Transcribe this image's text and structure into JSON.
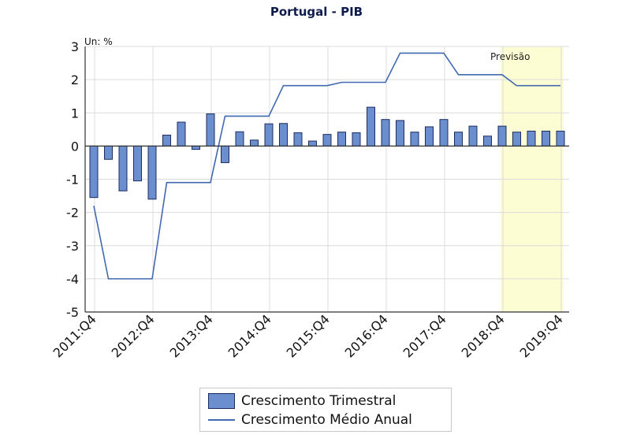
{
  "colors": {
    "bar_fill": "#6b8fce",
    "bar_stroke": "#1c2c60",
    "line": "#4169b0",
    "forecast_fill": "#fdfdd3",
    "grid": "#dcdcdc",
    "axis": "#333333"
  },
  "chart_data": {
    "type": "bar+line",
    "title": "Portugal - PIB",
    "unit_label": "Un: %",
    "forecast_label": "Previsão",
    "forecast_range": [
      "2018:Q4",
      "2019:Q4"
    ],
    "ylim": [
      -5,
      3
    ],
    "yticks": [
      3,
      2,
      1,
      0,
      -1,
      -2,
      -3,
      -4,
      -5
    ],
    "x_tick_labels": [
      "2011:Q4",
      "2012:Q4",
      "2013:Q4",
      "2014:Q4",
      "2015:Q4",
      "2016:Q4",
      "2017:Q4",
      "2018:Q4",
      "2019:Q4"
    ],
    "categories": [
      "2011:Q4",
      "2012:Q1",
      "2012:Q2",
      "2012:Q3",
      "2012:Q4",
      "2013:Q1",
      "2013:Q2",
      "2013:Q3",
      "2013:Q4",
      "2014:Q1",
      "2014:Q2",
      "2014:Q3",
      "2014:Q4",
      "2015:Q1",
      "2015:Q2",
      "2015:Q3",
      "2015:Q4",
      "2016:Q1",
      "2016:Q2",
      "2016:Q3",
      "2016:Q4",
      "2017:Q1",
      "2017:Q2",
      "2017:Q3",
      "2017:Q4",
      "2018:Q1",
      "2018:Q2",
      "2018:Q3",
      "2018:Q4",
      "2019:Q1",
      "2019:Q2",
      "2019:Q3",
      "2019:Q4"
    ],
    "series": [
      {
        "name": "Crescimento Trimestral",
        "type": "bar",
        "values": [
          -1.55,
          -0.4,
          -1.35,
          -1.05,
          -1.6,
          0.33,
          0.72,
          -0.1,
          0.97,
          -0.5,
          0.43,
          0.18,
          0.67,
          0.68,
          0.4,
          0.15,
          0.35,
          0.42,
          0.4,
          1.17,
          0.8,
          0.77,
          0.42,
          0.58,
          0.8,
          0.42,
          0.6,
          0.3,
          0.6,
          0.42,
          0.45,
          0.45,
          0.45
        ]
      },
      {
        "name": "Crescimento Médio Anual",
        "type": "line",
        "values": [
          -1.8,
          -4.0,
          -4.0,
          -4.0,
          -4.0,
          -1.1,
          -1.1,
          -1.1,
          -1.1,
          0.9,
          0.9,
          0.9,
          0.9,
          1.82,
          1.82,
          1.82,
          1.82,
          1.92,
          1.92,
          1.92,
          1.92,
          2.8,
          2.8,
          2.8,
          2.8,
          2.15,
          2.15,
          2.15,
          2.15,
          1.82,
          1.82,
          1.82,
          1.82
        ]
      }
    ]
  },
  "legend": {
    "bar_label": "Crescimento Trimestral",
    "line_label": "Crescimento Médio Anual"
  }
}
